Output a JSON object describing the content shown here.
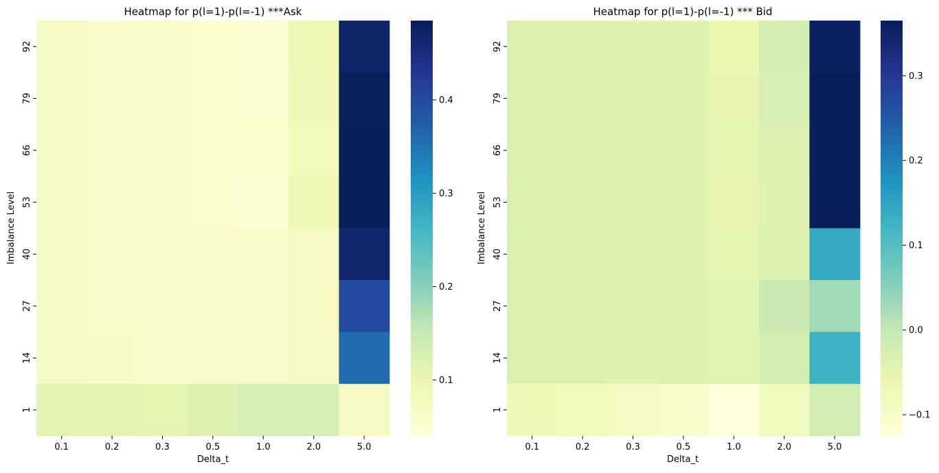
{
  "chart_data": [
    {
      "type": "heatmap",
      "title": "Heatmap for p(l=1)-p(l=-1) ***Ask",
      "xlabel": "Delta_t",
      "ylabel": "Imbalance Level",
      "x_categories": [
        "0.1",
        "0.2",
        "0.3",
        "0.5",
        "1.0",
        "2.0",
        "5.0"
      ],
      "y_categories": [
        "92",
        "79",
        "66",
        "53",
        "40",
        "27",
        "14",
        "1"
      ],
      "colormap": "YlGnBu",
      "vmin": 0.04,
      "vmax": 0.485,
      "colorbar_ticks": [
        0.1,
        0.2,
        0.3,
        0.4
      ],
      "values": [
        [
          0.07,
          0.06,
          0.06,
          0.055,
          0.05,
          0.09,
          0.47
        ],
        [
          0.07,
          0.06,
          0.06,
          0.055,
          0.05,
          0.085,
          0.48
        ],
        [
          0.07,
          0.06,
          0.06,
          0.055,
          0.055,
          0.08,
          0.482
        ],
        [
          0.07,
          0.06,
          0.06,
          0.055,
          0.045,
          0.09,
          0.484
        ],
        [
          0.07,
          0.06,
          0.06,
          0.06,
          0.06,
          0.07,
          0.465
        ],
        [
          0.07,
          0.06,
          0.06,
          0.06,
          0.06,
          0.07,
          0.4
        ],
        [
          0.07,
          0.065,
          0.06,
          0.06,
          0.06,
          0.07,
          0.36
        ],
        [
          0.11,
          0.11,
          0.105,
          0.12,
          0.13,
          0.13,
          0.07
        ]
      ]
    },
    {
      "type": "heatmap",
      "title": "Heatmap for p(l=1)-p(l=-1) *** Bid",
      "xlabel": "Delta_t",
      "ylabel": "Imbalance Level",
      "x_categories": [
        "0.1",
        "0.2",
        "0.3",
        "0.5",
        "1.0",
        "2.0",
        "5.0"
      ],
      "y_categories": [
        "92",
        "79",
        "66",
        "53",
        "40",
        "27",
        "14",
        "1"
      ],
      "colormap": "YlGnBu",
      "vmin": -0.125,
      "vmax": 0.365,
      "colorbar_ticks": [
        -0.1,
        0.0,
        0.1,
        0.2,
        0.3
      ],
      "values": [
        [
          -0.035,
          -0.035,
          -0.04,
          -0.04,
          -0.06,
          -0.025,
          0.355
        ],
        [
          -0.035,
          -0.035,
          -0.04,
          -0.04,
          -0.055,
          -0.03,
          0.362
        ],
        [
          -0.035,
          -0.035,
          -0.04,
          -0.04,
          -0.05,
          -0.035,
          0.363
        ],
        [
          -0.035,
          -0.035,
          -0.04,
          -0.04,
          -0.055,
          -0.04,
          0.364
        ],
        [
          -0.035,
          -0.035,
          -0.04,
          -0.04,
          -0.05,
          -0.04,
          0.14
        ],
        [
          -0.035,
          -0.035,
          -0.04,
          -0.035,
          -0.045,
          -0.01,
          0.03
        ],
        [
          -0.035,
          -0.035,
          -0.04,
          -0.035,
          -0.045,
          -0.025,
          0.125
        ],
        [
          -0.075,
          -0.08,
          -0.09,
          -0.1,
          -0.125,
          -0.085,
          -0.02
        ]
      ]
    }
  ]
}
